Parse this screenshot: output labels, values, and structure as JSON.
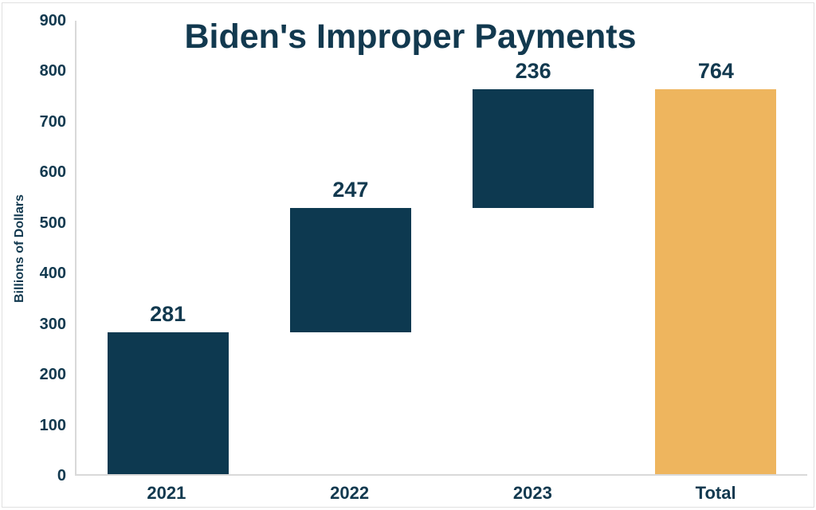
{
  "chart_data": {
    "type": "bar",
    "subtype": "waterfall",
    "title": "Biden's Improper Payments",
    "ylabel": "Billions of Dollars",
    "xlabel": "",
    "ylim": [
      0,
      900
    ],
    "ytick_interval": 100,
    "ytick_labels": [
      "0",
      "100",
      "200",
      "300",
      "400",
      "500",
      "600",
      "700",
      "800",
      "900"
    ],
    "grid": false,
    "legend": null,
    "categories": [
      "2021",
      "2022",
      "2023",
      "Total"
    ],
    "values": [
      281,
      247,
      236,
      764
    ],
    "segments": [
      {
        "category": "2021",
        "start": 0,
        "end": 281,
        "label": "281",
        "color": "#0d3950"
      },
      {
        "category": "2022",
        "start": 281,
        "end": 528,
        "label": "247",
        "color": "#0d3950"
      },
      {
        "category": "2023",
        "start": 528,
        "end": 764,
        "label": "236",
        "color": "#0d3950"
      },
      {
        "category": "Total",
        "start": 0,
        "end": 764,
        "label": "764",
        "color": "#eeb55e"
      }
    ],
    "colors": {
      "bar_navy": "#0d3950",
      "bar_gold": "#eeb55e",
      "text_navy": "#12394f",
      "axis_line": "#d9d9d9",
      "frame_border": "#e0e0e0",
      "background": "#ffffff"
    }
  }
}
